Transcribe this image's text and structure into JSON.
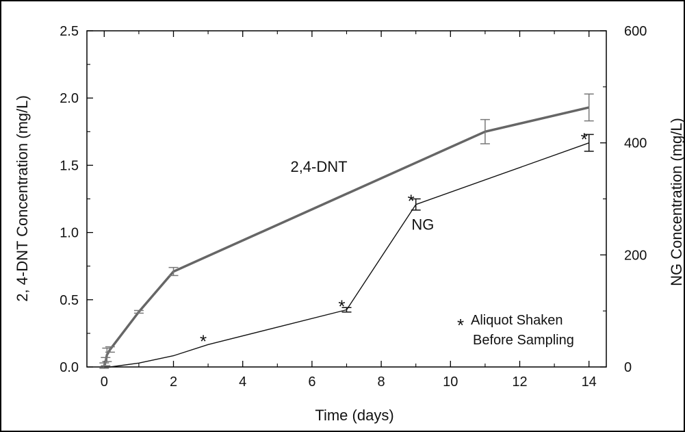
{
  "chart_data": {
    "type": "line",
    "xlabel": "Time (days)",
    "ylabel": "2, 4-DNT Concentration (mg/L)",
    "y2label": "NG Concentration (mg/L)",
    "xlim": [
      -0.5,
      14.5
    ],
    "ylim": [
      0,
      2.5
    ],
    "y2lim": [
      0,
      600
    ],
    "x_ticks": [
      0,
      2,
      4,
      6,
      8,
      10,
      12,
      14
    ],
    "y_ticks": [
      0,
      0.5,
      1,
      1.5,
      2,
      2.5
    ],
    "y2_ticks": [
      0,
      200,
      400,
      600
    ],
    "x_tick_labels": [
      "0",
      "2",
      "4",
      "6",
      "8",
      "10",
      "12",
      "14"
    ],
    "y_tick_labels": [
      "0.0",
      "0.5",
      "1.0",
      "1.5",
      "2.0",
      "2.5"
    ],
    "y2_tick_labels": [
      "0",
      "200",
      "400",
      "600"
    ],
    "series": [
      {
        "name": "2,4-DNT",
        "axis": "left",
        "color": "#666666",
        "x": [
          0,
          0.04,
          0.08,
          0.17,
          1,
          2,
          11,
          14
        ],
        "y": [
          0.01,
          0.04,
          0.09,
          0.13,
          0.41,
          0.71,
          1.75,
          1.93
        ],
        "err": [
          0.02,
          0.03,
          0.05,
          0.02,
          0.01,
          0.03,
          0.09,
          0.1
        ]
      },
      {
        "name": "NG",
        "axis": "right",
        "color": "#111111",
        "x": [
          0,
          0.08,
          0.17,
          1,
          2,
          3,
          7,
          9,
          14
        ],
        "y": [
          0,
          0,
          0,
          7,
          20,
          40,
          102,
          290,
          400
        ],
        "err": [
          0,
          0,
          0,
          0,
          0,
          0,
          4,
          10,
          15
        ]
      }
    ],
    "annotations": [
      {
        "text": "2,4-DNT",
        "x": 6.2,
        "y": 1.45,
        "axis": "left"
      },
      {
        "text": "NG",
        "x": 9.2,
        "y": 245,
        "axis": "right"
      },
      {
        "text": "*",
        "x": 3,
        "y": 40,
        "axis": "right"
      },
      {
        "text": "*",
        "x": 7,
        "y": 102,
        "axis": "right"
      },
      {
        "text": "*",
        "x": 9,
        "y": 290,
        "axis": "right"
      },
      {
        "text": "*",
        "x": 14,
        "y": 400,
        "axis": "right"
      }
    ],
    "legend_note": {
      "marker": "*",
      "line1": "Aliquot Shaken",
      "line2": "Before Sampling"
    },
    "grid": false
  }
}
